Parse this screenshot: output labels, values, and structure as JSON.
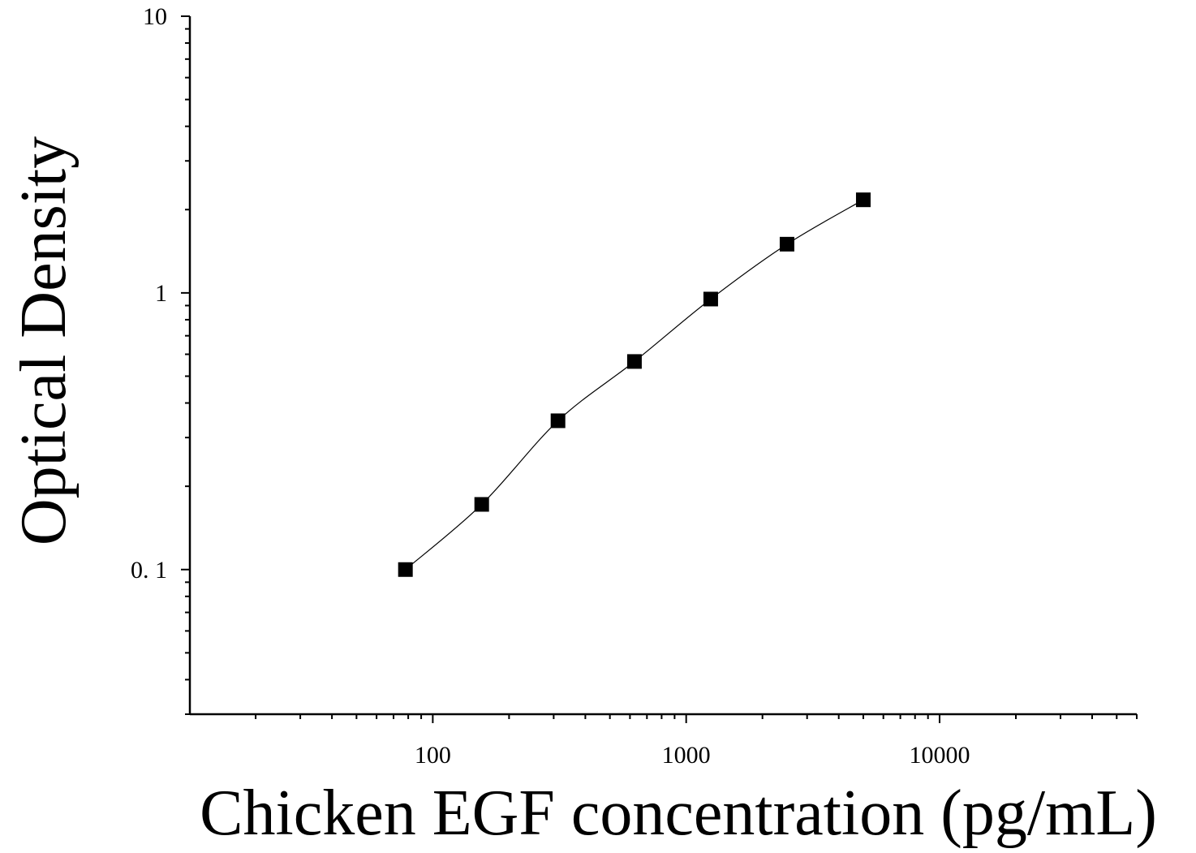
{
  "chart_data": {
    "type": "scatter",
    "xlabel": "Chicken  EGF concentration (pg/mL)",
    "ylabel": "Optical Density",
    "x_scale": "log",
    "y_scale": "log",
    "xlim": [
      11,
      60000
    ],
    "ylim": [
      0.03,
      10
    ],
    "x_ticks": [
      {
        "value": 100,
        "label": "100"
      },
      {
        "value": 1000,
        "label": "1000"
      },
      {
        "value": 10000,
        "label": "10000"
      }
    ],
    "y_ticks": [
      {
        "value": 0.1,
        "label": "0. 1"
      },
      {
        "value": 1,
        "label": "1"
      },
      {
        "value": 10,
        "label": "10"
      }
    ],
    "grid": false,
    "marker": "square",
    "fit_line": "smooth curve through points",
    "series": [
      {
        "x": [
          78,
          156,
          312,
          625,
          1250,
          2500,
          5000
        ],
        "y": [
          0.1,
          0.172,
          0.345,
          0.565,
          0.95,
          1.5,
          2.17
        ]
      }
    ],
    "colors": {
      "marker": "#000000",
      "line": "#000000",
      "axis": "#000000"
    }
  }
}
